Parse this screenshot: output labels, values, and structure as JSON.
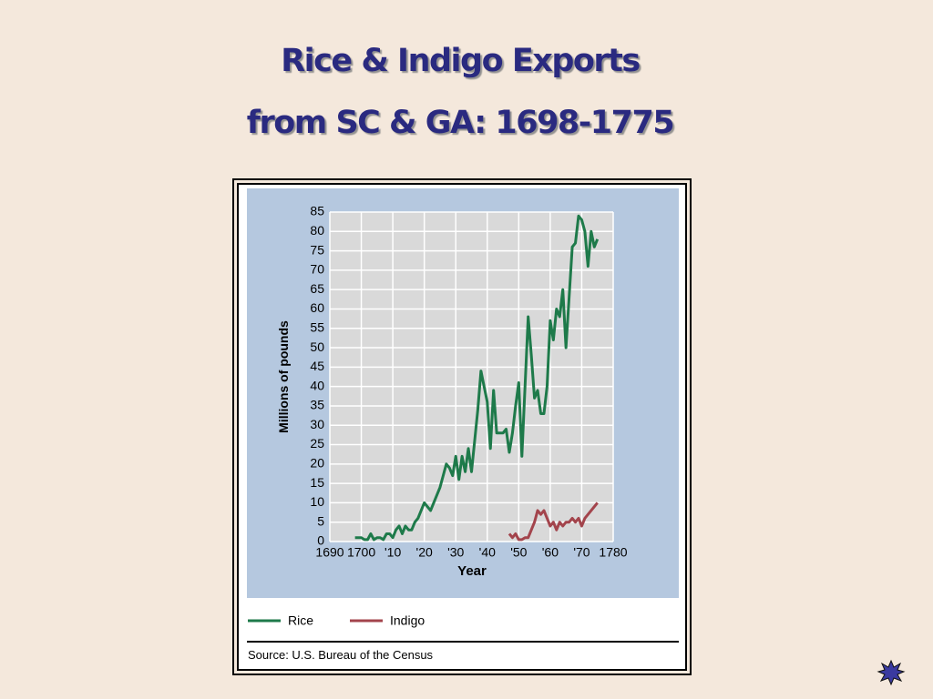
{
  "chart_data": {
    "type": "line",
    "title": "Rice & Indigo Exports",
    "subtitle": "from SC & GA:  1698-1775",
    "xlabel": "Year",
    "ylabel": "Millions of pounds",
    "source": "Source: U.S. Bureau of the Census",
    "xlim": [
      1690,
      1780
    ],
    "ylim": [
      0,
      85
    ],
    "xticks": [
      1690,
      1700,
      {
        "value": 1710,
        "label": "'10"
      },
      {
        "value": 1720,
        "label": "'20"
      },
      {
        "value": 1730,
        "label": "'30"
      },
      {
        "value": 1740,
        "label": "'40"
      },
      {
        "value": 1750,
        "label": "'50"
      },
      {
        "value": 1760,
        "label": "'60"
      },
      {
        "value": 1770,
        "label": "'70"
      },
      1780
    ],
    "yticks": [
      0,
      5,
      10,
      15,
      20,
      25,
      30,
      35,
      40,
      45,
      50,
      55,
      60,
      65,
      70,
      75,
      80,
      85
    ],
    "grid": true,
    "legend": "bottom",
    "x": [
      1698,
      1699,
      1700,
      1701,
      1702,
      1703,
      1704,
      1705,
      1706,
      1707,
      1708,
      1709,
      1710,
      1711,
      1712,
      1713,
      1714,
      1715,
      1716,
      1717,
      1718,
      1719,
      1720,
      1721,
      1722,
      1723,
      1724,
      1725,
      1726,
      1727,
      1728,
      1729,
      1730,
      1731,
      1732,
      1733,
      1734,
      1735,
      1736,
      1737,
      1738,
      1739,
      1740,
      1741,
      1742,
      1743,
      1744,
      1745,
      1746,
      1747,
      1748,
      1749,
      1750,
      1751,
      1752,
      1753,
      1754,
      1755,
      1756,
      1757,
      1758,
      1759,
      1760,
      1761,
      1762,
      1763,
      1764,
      1765,
      1766,
      1767,
      1768,
      1769,
      1770,
      1771,
      1772,
      1773,
      1774,
      1775
    ],
    "series": [
      {
        "name": "Rice",
        "color": "#1e7a4a",
        "values": [
          1,
          1,
          1,
          0.5,
          0.5,
          2,
          0.5,
          1,
          1,
          0.5,
          2,
          2,
          1,
          3,
          4,
          2,
          4,
          3,
          3,
          5,
          6,
          8,
          10,
          9,
          8,
          10,
          12,
          14,
          17,
          20,
          19,
          17,
          22,
          16,
          22,
          18,
          24,
          18,
          26,
          34,
          44,
          40,
          36,
          24,
          39,
          28,
          28,
          28,
          29,
          23,
          28,
          35,
          41,
          22,
          40,
          58,
          48,
          37,
          39,
          33,
          33,
          40,
          57,
          52,
          60,
          58,
          65,
          50,
          63,
          76,
          77,
          84,
          83,
          80,
          71,
          80,
          76,
          78
        ]
      },
      {
        "name": "Indigo",
        "color": "#a3444c",
        "values": [
          null,
          null,
          null,
          null,
          null,
          null,
          null,
          null,
          null,
          null,
          null,
          null,
          null,
          null,
          null,
          null,
          null,
          null,
          null,
          null,
          null,
          null,
          null,
          null,
          null,
          null,
          null,
          null,
          null,
          null,
          null,
          null,
          null,
          null,
          null,
          null,
          null,
          null,
          null,
          null,
          null,
          null,
          null,
          null,
          null,
          null,
          null,
          null,
          null,
          2,
          1,
          2,
          0.5,
          0.5,
          1,
          1,
          3,
          5,
          8,
          7,
          8,
          6,
          4,
          5,
          3,
          5,
          4,
          5,
          5,
          6,
          5,
          6,
          4,
          6,
          7,
          8,
          9,
          10
        ]
      }
    ]
  }
}
